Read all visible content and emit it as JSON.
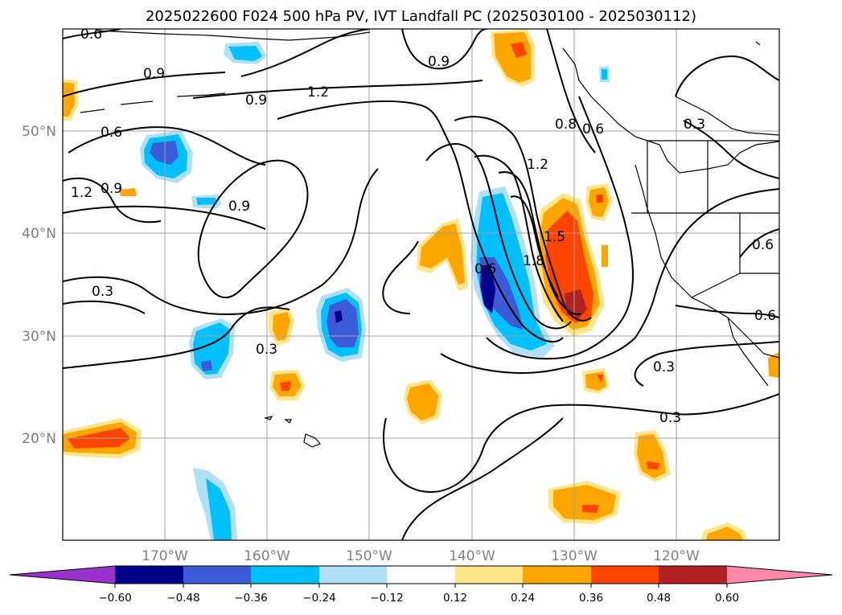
{
  "title": "2025022600 F024 500 hPa PV, IVT Landfall PC (2025030100 - 2025030112)",
  "lat_labels": [
    "50°N",
    "40°N",
    "30°N",
    "20°N"
  ],
  "lon_labels": [
    "170°W",
    "160°W",
    "150°W",
    "140°W",
    "130°W",
    "120°W"
  ],
  "colorbar": {
    "ticks": [
      "−0.60",
      "−0.48",
      "−0.36",
      "−0.24",
      "−0.12",
      "0.12",
      "0.24",
      "0.36",
      "0.48",
      "0.60"
    ],
    "colors": [
      "#9932cc",
      "#00008b",
      "#3b5bd9",
      "#00bfff",
      "#b0e0f8",
      "#ffffff",
      "#fde68a",
      "#ffa500",
      "#ff4500",
      "#b22222",
      "#ff88aa"
    ]
  },
  "contour_labels": {
    "c1": "0.6",
    "c2": "0.9",
    "c3": "0.9",
    "c4": "1.2",
    "c5": "0.9",
    "c6": "0.6",
    "c7": "0.9",
    "c8": "1.2",
    "c9": "0.9",
    "c10": "0.3",
    "c11": "0.3",
    "c12": "1.2",
    "c13": "1.5",
    "c14": "1.8",
    "c15": "0.8",
    "c16": "0.6",
    "c17": "0.3",
    "c18": "0.6",
    "c19": "0.6",
    "c20": "0.3",
    "c21": "0.3",
    "c22": "0.6"
  }
}
